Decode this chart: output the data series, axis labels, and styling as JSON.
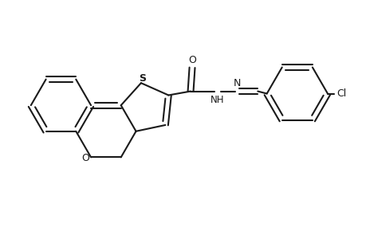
{
  "bg_color": "#ffffff",
  "line_color": "#1a1a1a",
  "lw": 1.5,
  "fig_width": 4.6,
  "fig_height": 3.0,
  "dpi": 100,
  "xlim": [
    0,
    4.6
  ],
  "ylim": [
    0,
    3.0
  ]
}
